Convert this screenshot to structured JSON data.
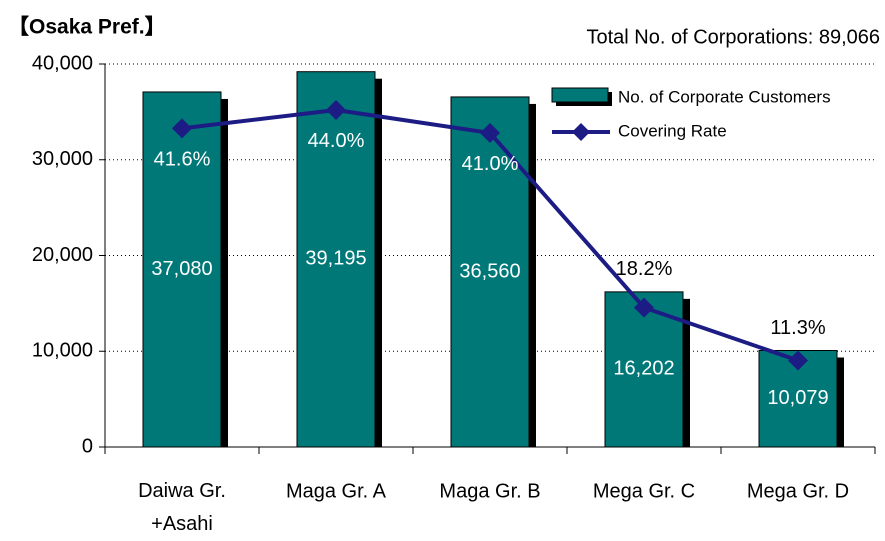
{
  "chart_data": {
    "type": "bar",
    "title": "【Osaka Pref.】",
    "subtitle": "Total No. of Corporations: 89,066",
    "categories": [
      "Daiwa Gr.\n+Asahi",
      "Maga Gr. A",
      "Maga Gr. B",
      "Mega Gr. C",
      "Mega Gr. D"
    ],
    "series": [
      {
        "name": "No. of Corporate Customers",
        "type": "bar",
        "color": "#007878",
        "values": [
          37080,
          39195,
          36560,
          16202,
          10079
        ],
        "value_labels": [
          "37,080",
          "39,195",
          "36,560",
          "16,202",
          "10,079"
        ]
      },
      {
        "name": "Covering Rate",
        "type": "line",
        "axis": "y2",
        "color": "#1c1c84",
        "values": [
          41.6,
          44.0,
          41.0,
          18.2,
          11.3
        ],
        "value_labels": [
          "41.6%",
          "44.0%",
          "41.0%",
          "18.2%",
          "11.3%"
        ]
      }
    ],
    "ylim": [
      0,
      40000
    ],
    "yticks": [
      0,
      {
        "value": 10000,
        "label": "10,000"
      },
      {
        "value": 20000,
        "label": "20,000"
      },
      {
        "value": 30000,
        "label": "30,000"
      },
      {
        "value": 40000,
        "label": "40,000"
      }
    ],
    "y2lim": [
      0,
      50
    ],
    "grid": true,
    "legend": "upper right"
  }
}
